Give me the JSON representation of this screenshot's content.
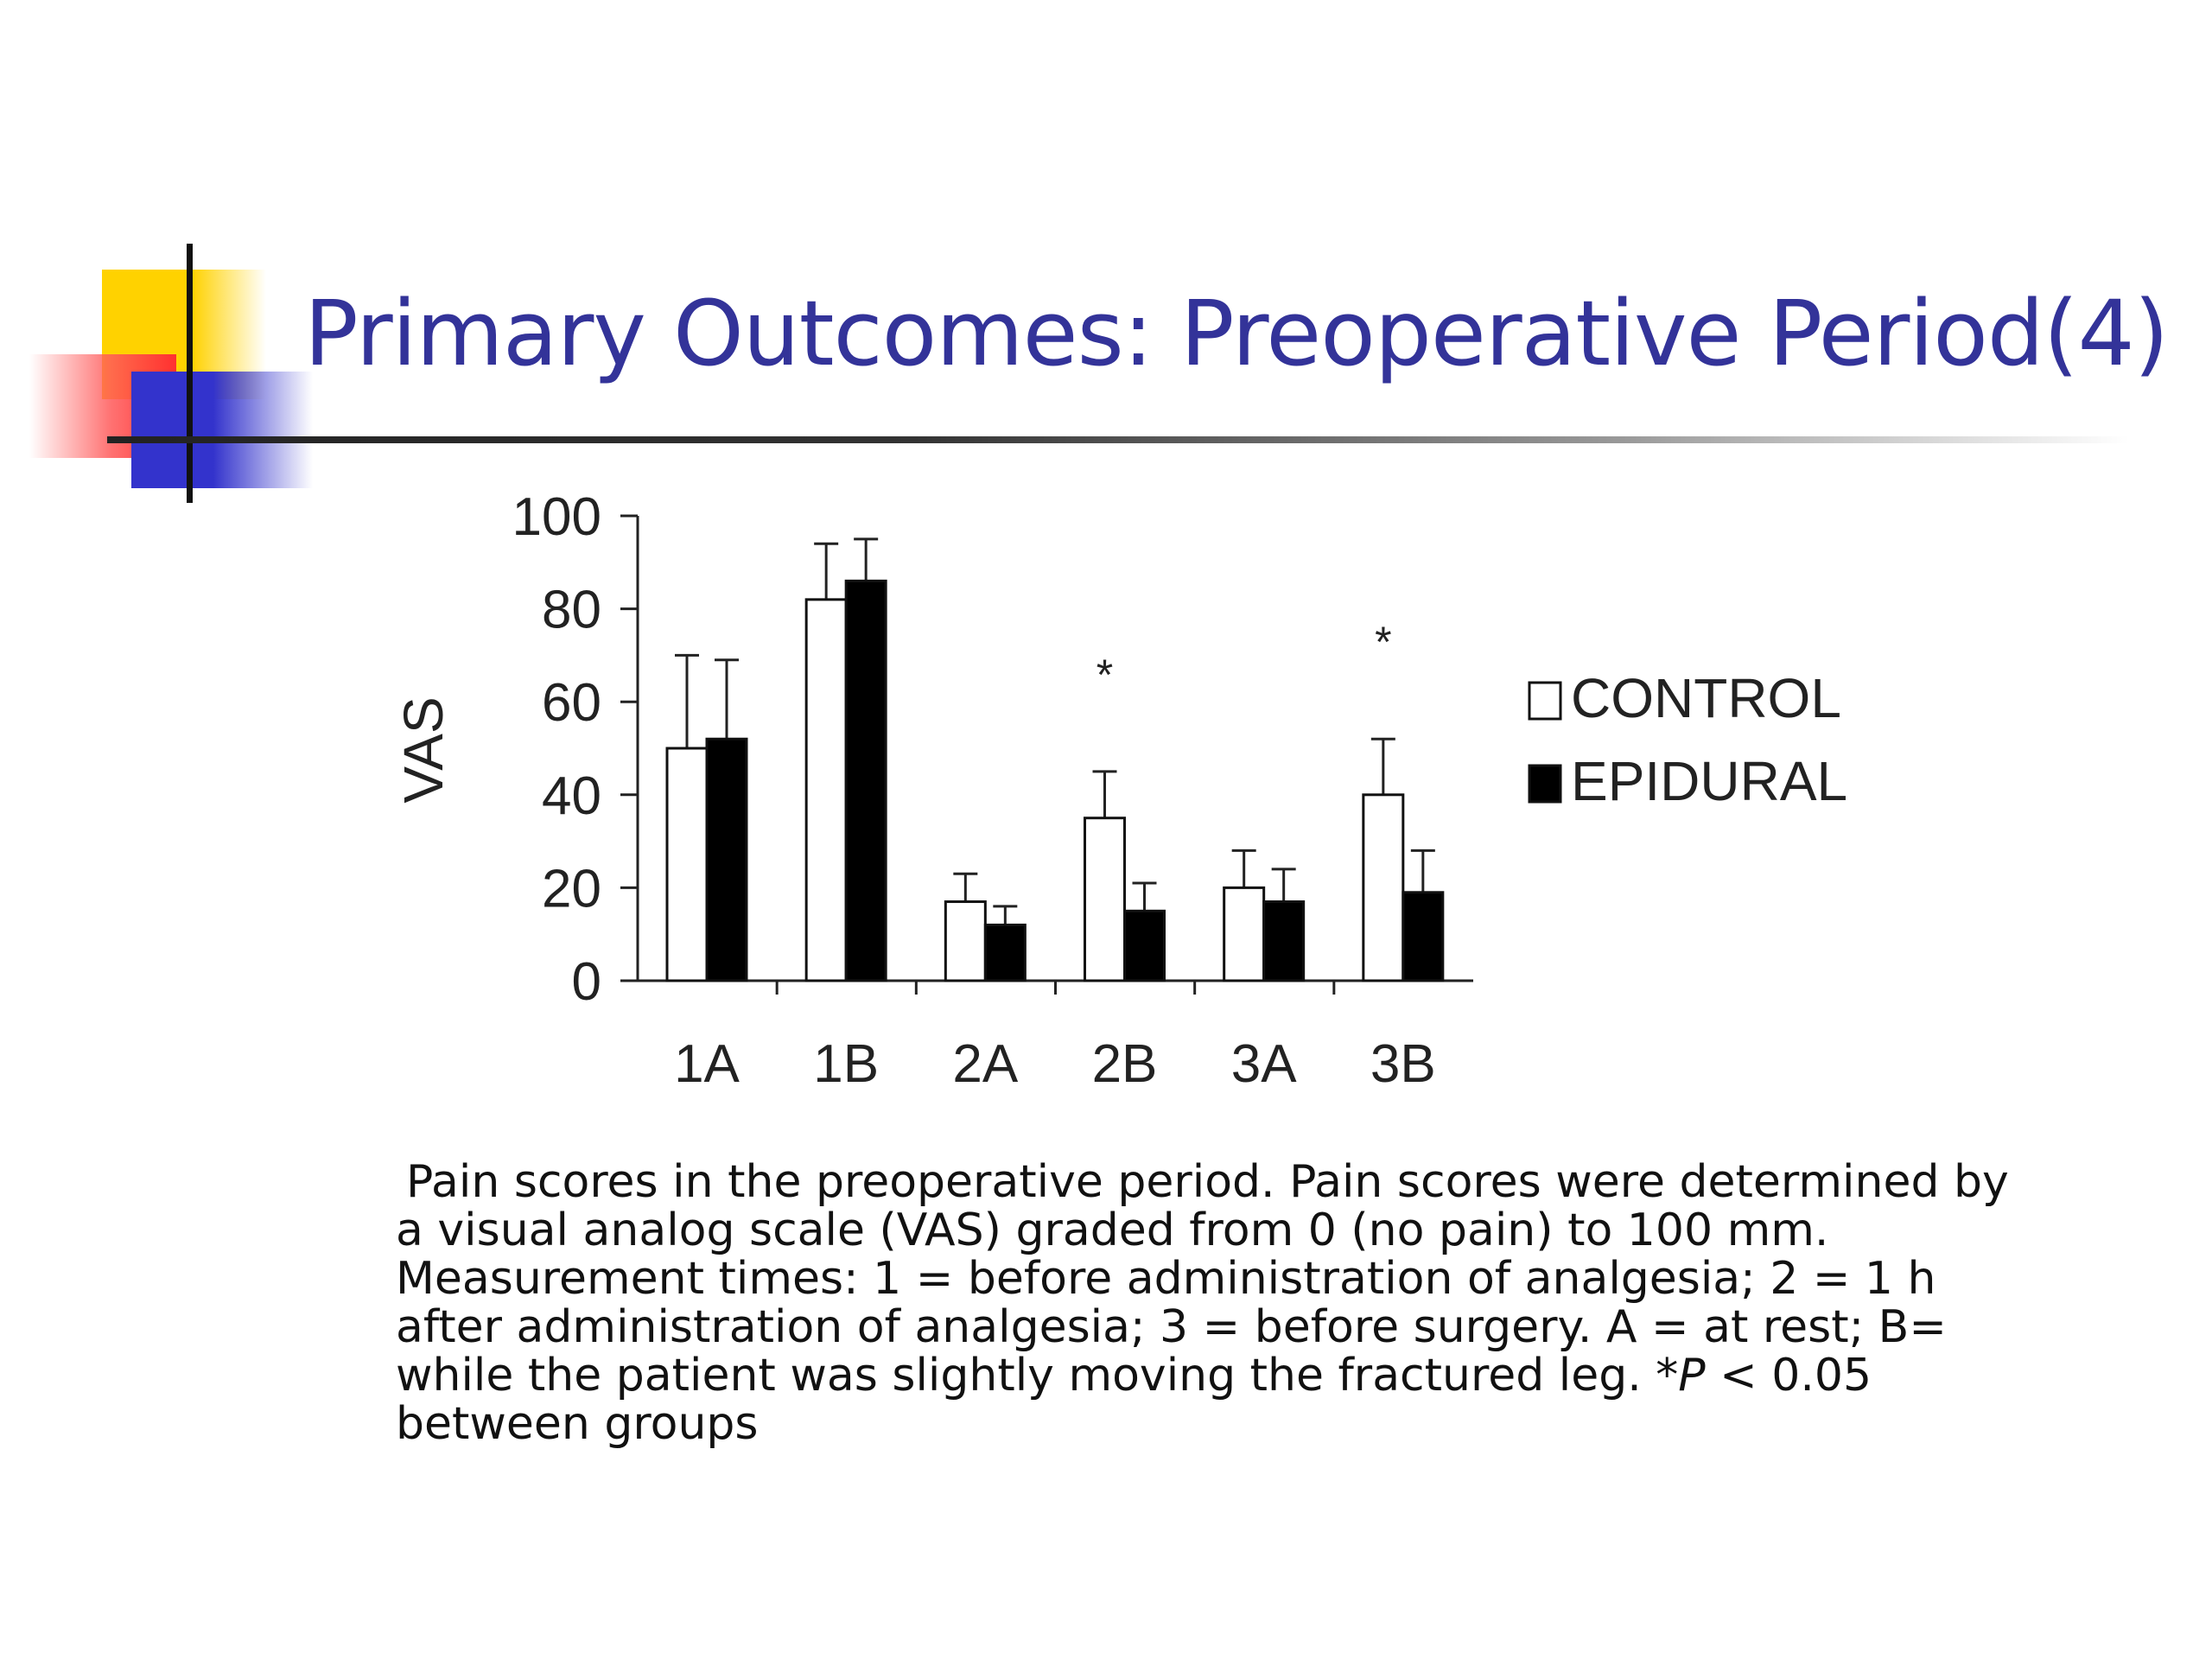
{
  "slide": {
    "title": "Primary Outcomes: Preoperative Period(4)",
    "caption_lines": [
      "Pain scores in the preoperative period. Pain scores were determined by",
      "a visual analog scale (VAS) graded from 0 (no pain) to 100 mm.",
      "Measurement times: 1 = before administration of analgesia; 2 = 1 h",
      "after administration of analgesia; 3 = before surgery. A = at rest; B=",
      "while the patient was slightly moving the fractured leg. *",
      "between groups"
    ],
    "caption_p": "P",
    "caption_p_value": " < 0.05"
  },
  "chart_data": {
    "type": "bar",
    "ylabel": "VAS",
    "xlabel": "",
    "ylim": [
      0,
      100
    ],
    "yticks": [
      0,
      20,
      40,
      60,
      80,
      100
    ],
    "categories": [
      "1A",
      "1B",
      "2A",
      "2B",
      "3A",
      "3B"
    ],
    "series": [
      {
        "name": "CONTROL",
        "fill": "#ffffff",
        "values": [
          50,
          82,
          17,
          35,
          20,
          40
        ],
        "error": [
          20,
          12,
          6,
          10,
          8,
          12
        ]
      },
      {
        "name": "EPIDURAL",
        "fill": "#000000",
        "values": [
          52,
          86,
          12,
          15,
          17,
          19
        ],
        "error": [
          17,
          9,
          4,
          6,
          7,
          9
        ]
      }
    ],
    "significance_marker": "*",
    "significant_categories": [
      "2B",
      "3B"
    ],
    "legend_position": "right",
    "grid": false
  }
}
